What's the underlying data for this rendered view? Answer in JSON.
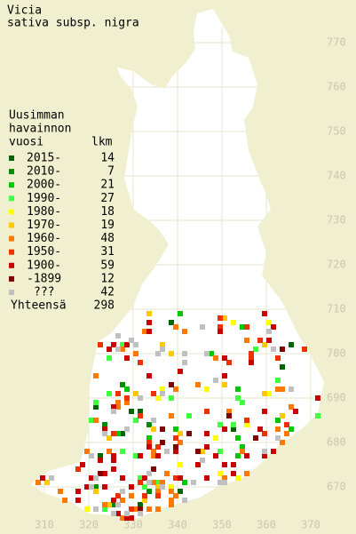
{
  "title": "Vicia",
  "subtitle": "sativa subsp. nigra",
  "legend": {
    "title_lines": [
      "Uusimman",
      "havainnon",
      "vuosi"
    ],
    "count_header": "lkm",
    "rows": [
      {
        "label": "2015-",
        "count": 14,
        "color": "#006400"
      },
      {
        "label": "2010-",
        "count": 7,
        "color": "#008c00"
      },
      {
        "label": "2000-",
        "count": 21,
        "color": "#00c800"
      },
      {
        "label": "1990-",
        "count": 27,
        "color": "#40ff40"
      },
      {
        "label": "1980-",
        "count": 18,
        "color": "#ffff00"
      },
      {
        "label": "1970-",
        "count": 19,
        "color": "#ffc800"
      },
      {
        "label": "1960-",
        "count": 48,
        "color": "#ff7800"
      },
      {
        "label": "1950-",
        "count": 31,
        "color": "#f03000"
      },
      {
        "label": "1900-",
        "count": 59,
        "color": "#c80000"
      },
      {
        "label": "-1899",
        "count": 12,
        "color": "#800000"
      },
      {
        "label": "???",
        "count": 42,
        "color": "#c0c0c0"
      }
    ],
    "total": {
      "label": "Yhteensä",
      "value": 298
    }
  },
  "grid": {
    "y_labels": [
      770,
      760,
      750,
      740,
      730,
      720,
      710,
      700,
      690,
      680,
      670
    ],
    "x_labels": [
      310,
      320,
      330,
      340,
      350,
      360,
      370
    ]
  }
}
